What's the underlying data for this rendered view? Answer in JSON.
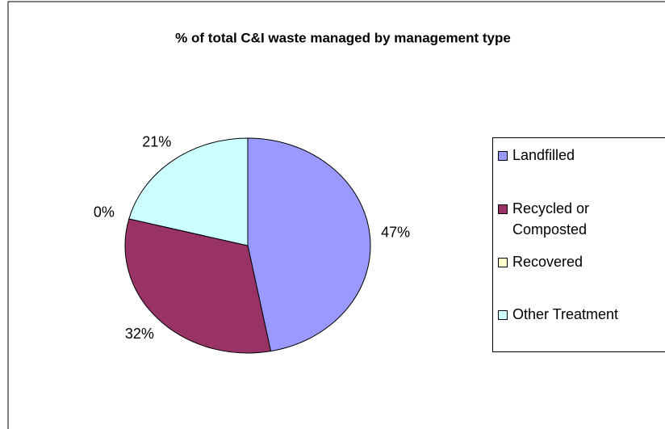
{
  "chart_data": {
    "type": "pie",
    "title": "% of total C&I waste managed by management type",
    "categories": [
      "Landfilled",
      "Recycled or Composted",
      "Recovered",
      "Other Treatment"
    ],
    "values": [
      47,
      32,
      0,
      21
    ],
    "value_labels": [
      "47%",
      "32%",
      "0%",
      "21%"
    ],
    "colors": [
      "#9999ff",
      "#993366",
      "#ffffcc",
      "#ccffff"
    ],
    "legend": "right"
  }
}
